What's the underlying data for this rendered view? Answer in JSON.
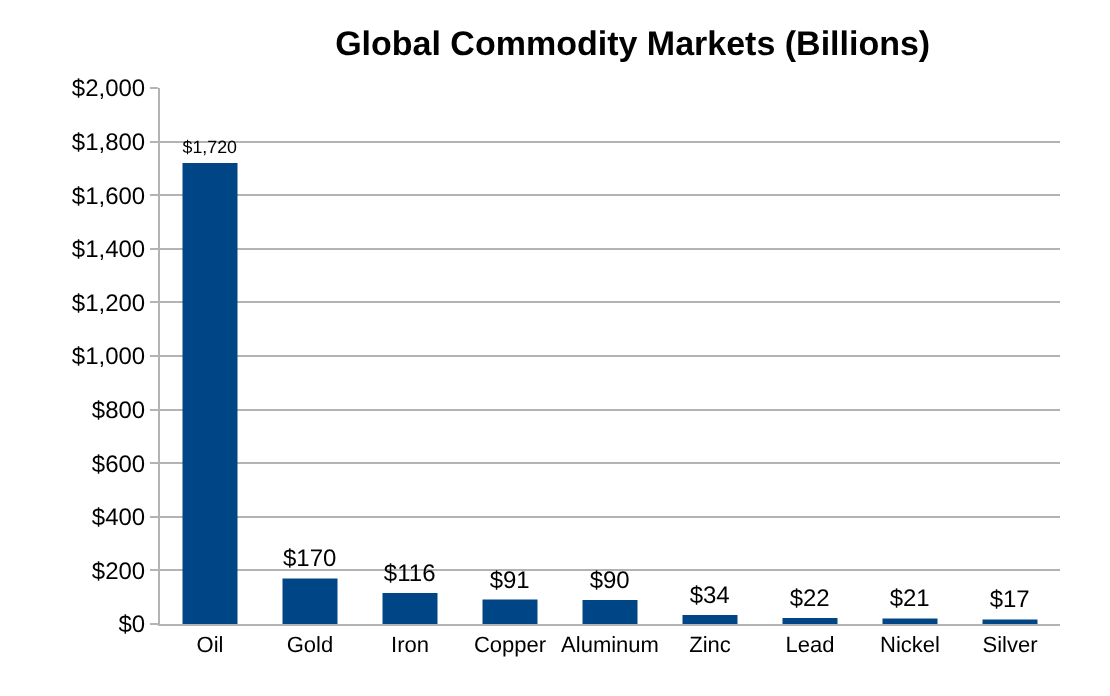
{
  "chart_data": {
    "type": "bar",
    "title": "Global Commodity Markets (Billions)",
    "categories": [
      "Oil",
      "Gold",
      "Iron",
      "Copper",
      "Aluminum",
      "Zinc",
      "Lead",
      "Nickel",
      "Silver"
    ],
    "values": [
      1720,
      170,
      116,
      91,
      90,
      34,
      22,
      21,
      17
    ],
    "value_labels": [
      "$1,720",
      "$170",
      "$116",
      "$91",
      "$90",
      "$34",
      "$22",
      "$21",
      "$17"
    ],
    "color": "#004586",
    "ylim": [
      0,
      2000
    ],
    "yticks": [
      {
        "value": 0,
        "label": "$0"
      },
      {
        "value": 200,
        "label": "$200"
      },
      {
        "value": 400,
        "label": "$400"
      },
      {
        "value": 600,
        "label": "$600"
      },
      {
        "value": 800,
        "label": "$800"
      },
      {
        "value": 1000,
        "label": "$1,000"
      },
      {
        "value": 1200,
        "label": "$1,200"
      },
      {
        "value": 1400,
        "label": "$1,400"
      },
      {
        "value": 1600,
        "label": "$1,600"
      },
      {
        "value": 1800,
        "label": "$1,800"
      },
      {
        "value": 2000,
        "label": "$2,000"
      }
    ],
    "grid": "y",
    "legend": false
  }
}
